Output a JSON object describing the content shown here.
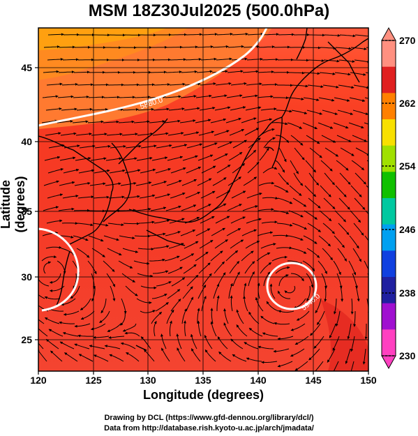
{
  "title": "MSM 18Z30Jul2025 (500.0hPa)",
  "xlabel": "Longitude (degrees)",
  "ylabel": "Latitude  (degrees)",
  "xticks": [
    "120",
    "125",
    "130",
    "135",
    "140",
    "145",
    "150"
  ],
  "yticks": [
    "25",
    "30",
    "35",
    "40",
    "45"
  ],
  "colorbar": {
    "labels": [
      "270",
      "262",
      "254",
      "246",
      "238",
      "230"
    ],
    "colors": [
      "#ff9080",
      "#e02020",
      "#ff8000",
      "#f8e000",
      "#a0e000",
      "#10c000",
      "#00c8a0",
      "#00a0f0",
      "#1040e0",
      "#2020a0",
      "#a010d0",
      "#ff40c0"
    ]
  },
  "contours": [
    {
      "label": "5880.0"
    },
    {
      "label": "5940.0"
    },
    {
      "label": "5940.0"
    }
  ],
  "credits": [
    "Drawing by DCL (https://www.gfd-dennou.org/library/dcl/)",
    "Data from http://database.rish.kyoto-u.ac.jp/arch/jmadata/"
  ]
}
